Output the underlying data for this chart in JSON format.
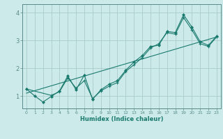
{
  "title": "",
  "xlabel": "Humidex (Indice chaleur)",
  "ylabel": "",
  "bg_color": "#cceaea",
  "line_color": "#1a7a6e",
  "grid_color": "#aacccc",
  "axis_color": "#5a8a8a",
  "xlim": [
    -0.5,
    23.5
  ],
  "ylim": [
    0.55,
    4.3
  ],
  "xticks": [
    0,
    1,
    2,
    3,
    4,
    5,
    6,
    7,
    8,
    9,
    10,
    11,
    12,
    13,
    14,
    15,
    16,
    17,
    18,
    19,
    20,
    21,
    22,
    23
  ],
  "yticks": [
    1,
    2,
    3,
    4
  ],
  "series1": [
    [
      0,
      1.25
    ],
    [
      1,
      1.0
    ],
    [
      2,
      0.78
    ],
    [
      3,
      0.98
    ],
    [
      4,
      1.18
    ],
    [
      5,
      1.72
    ],
    [
      6,
      1.22
    ],
    [
      7,
      1.75
    ],
    [
      8,
      0.88
    ],
    [
      9,
      1.22
    ],
    [
      10,
      1.42
    ],
    [
      11,
      1.55
    ],
    [
      12,
      1.92
    ],
    [
      13,
      2.22
    ],
    [
      14,
      2.45
    ],
    [
      15,
      2.78
    ],
    [
      16,
      2.82
    ],
    [
      17,
      3.32
    ],
    [
      18,
      3.28
    ],
    [
      19,
      3.92
    ],
    [
      20,
      3.48
    ],
    [
      21,
      2.95
    ],
    [
      22,
      2.82
    ],
    [
      23,
      3.15
    ]
  ],
  "series2": [
    [
      0,
      1.25
    ],
    [
      3,
      1.02
    ],
    [
      4,
      1.15
    ],
    [
      5,
      1.65
    ],
    [
      6,
      1.28
    ],
    [
      7,
      1.55
    ],
    [
      8,
      0.9
    ],
    [
      9,
      1.18
    ],
    [
      10,
      1.35
    ],
    [
      11,
      1.48
    ],
    [
      12,
      1.88
    ],
    [
      13,
      2.12
    ],
    [
      14,
      2.38
    ],
    [
      15,
      2.72
    ],
    [
      16,
      2.88
    ],
    [
      17,
      3.28
    ],
    [
      18,
      3.22
    ],
    [
      19,
      3.82
    ],
    [
      20,
      3.38
    ],
    [
      21,
      2.88
    ],
    [
      22,
      2.78
    ],
    [
      23,
      3.12
    ]
  ],
  "line_straight": [
    [
      0,
      1.1
    ],
    [
      23,
      3.12
    ]
  ]
}
